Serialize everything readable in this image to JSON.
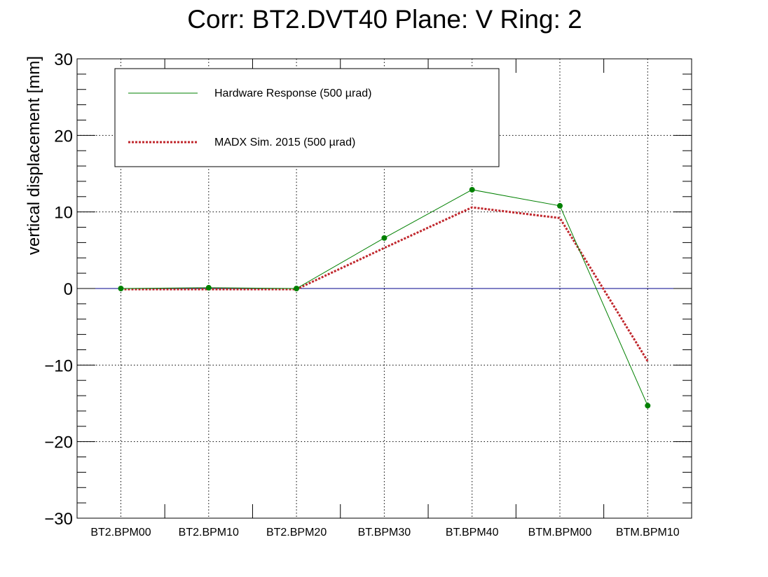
{
  "chart_data": {
    "type": "line",
    "title": "Corr: BT2.DVT40 Plane: V Ring: 2",
    "xlabel": "",
    "ylabel": "vertical displacement [mm]",
    "categories": [
      "BT2.BPM00",
      "BT2.BPM10",
      "BT2.BPM20",
      "BT.BPM30",
      "BT.BPM40",
      "BTM.BPM00",
      "BTM.BPM10"
    ],
    "ylim": [
      -30,
      30
    ],
    "y_ticks": [
      {
        "value": 30,
        "label": "30"
      },
      {
        "value": 20,
        "label": "20"
      },
      {
        "value": 10,
        "label": "10"
      },
      {
        "value": 0,
        "label": "0"
      },
      {
        "value": -10,
        "label": "−10"
      },
      {
        "value": -20,
        "label": "−20"
      },
      {
        "value": -30,
        "label": "−30"
      }
    ],
    "grid": true,
    "legend_position": "top-left",
    "zero_line": {
      "value": 0,
      "color": "#00008b"
    },
    "series": [
      {
        "name": "Hardware Response (500 µrad)",
        "values": [
          0.0,
          0.1,
          0.0,
          6.6,
          12.9,
          10.8,
          -15.3
        ],
        "color": "#008000",
        "style": "solid",
        "markers": true
      },
      {
        "name": "MADX Sim. 2015 (500 µrad)",
        "values": [
          -0.1,
          -0.1,
          -0.1,
          5.3,
          10.6,
          9.2,
          -9.5
        ],
        "color": "#c0272d",
        "style": "dotted",
        "markers": false
      }
    ]
  }
}
